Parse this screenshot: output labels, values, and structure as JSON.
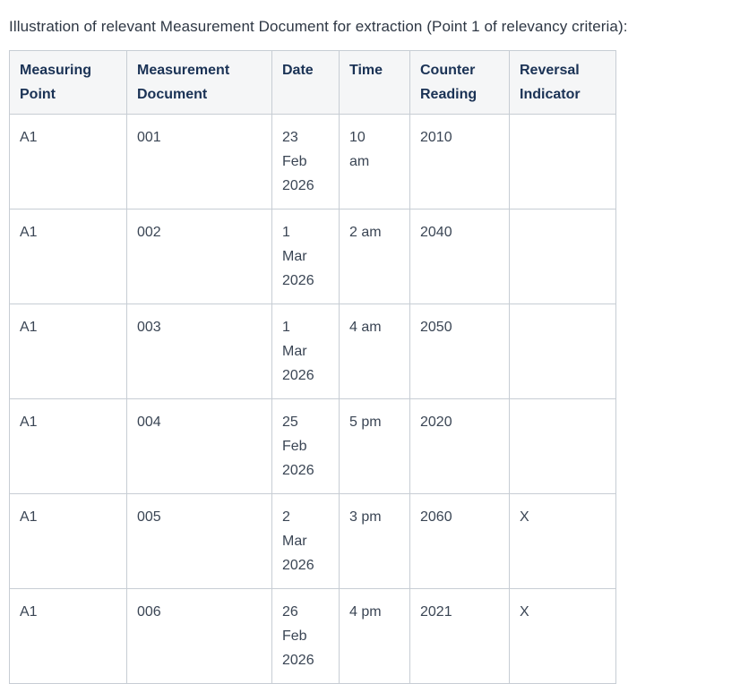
{
  "title": "Illustration of relevant Measurement Document for extraction (Point 1 of relevancy criteria):",
  "table": {
    "columns": [
      "Measuring Point",
      "Measurement Document",
      "Date",
      "Time",
      "Counter Reading",
      "Reversal Indicator"
    ],
    "rows": [
      {
        "measuring_point": "A1",
        "measurement_document": "001",
        "date": "23\nFeb\n2026",
        "time": "10\nam",
        "counter_reading": "2010",
        "reversal_indicator": ""
      },
      {
        "measuring_point": "A1",
        "measurement_document": "002",
        "date": "1\nMar\n2026",
        "time": "2 am",
        "counter_reading": "2040",
        "reversal_indicator": ""
      },
      {
        "measuring_point": "A1",
        "measurement_document": "003",
        "date": "1\nMar\n2026",
        "time": "4 am",
        "counter_reading": "2050",
        "reversal_indicator": ""
      },
      {
        "measuring_point": "A1",
        "measurement_document": "004",
        "date": "25\nFeb\n2026",
        "time": "5 pm",
        "counter_reading": "2020",
        "reversal_indicator": ""
      },
      {
        "measuring_point": "A1",
        "measurement_document": "005",
        "date": "2\nMar\n2026",
        "time": "3 pm",
        "counter_reading": "2060",
        "reversal_indicator": "X"
      },
      {
        "measuring_point": "A1",
        "measurement_document": "006",
        "date": "26\nFeb\n2026",
        "time": "4 pm",
        "counter_reading": "2021",
        "reversal_indicator": "X"
      }
    ]
  },
  "colors": {
    "header_background": "#f5f6f7",
    "header_text": "#1a3255",
    "body_text": "#3a4554",
    "border": "#c7cdd4"
  }
}
